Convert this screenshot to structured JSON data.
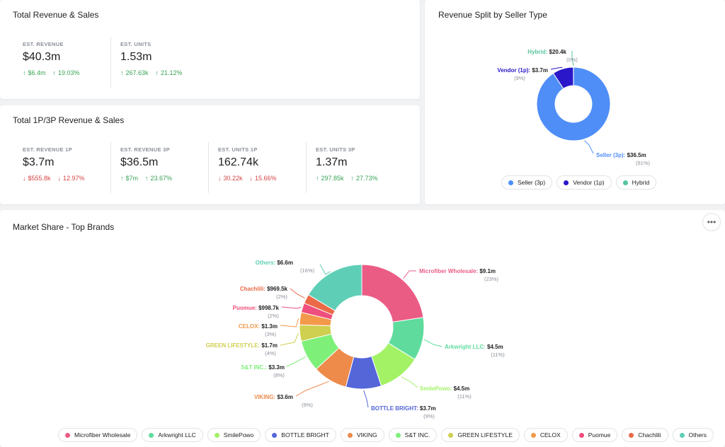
{
  "total_revenue_card": {
    "title": "Total Revenue & Sales",
    "metrics": [
      {
        "label": "EST. REVENUE",
        "value": "$40.3m",
        "changes": [
          {
            "dir": "up",
            "text": "$6.4m"
          },
          {
            "dir": "up",
            "text": "19.03%"
          }
        ]
      },
      {
        "label": "EST. UNITS",
        "value": "1.53m",
        "changes": [
          {
            "dir": "up",
            "text": "267.63k"
          },
          {
            "dir": "up",
            "text": "21.12%"
          }
        ]
      }
    ]
  },
  "total_1p3p_card": {
    "title": "Total 1P/3P Revenue & Sales",
    "metrics": [
      {
        "label": "EST. REVENUE 1P",
        "value": "$3.7m",
        "changes": [
          {
            "dir": "down",
            "text": "$555.8k"
          },
          {
            "dir": "down",
            "text": "12.97%"
          }
        ]
      },
      {
        "label": "EST. REVENUE 3P",
        "value": "$36.5m",
        "changes": [
          {
            "dir": "up",
            "text": "$7m"
          },
          {
            "dir": "up",
            "text": "23.67%"
          }
        ]
      },
      {
        "label": "EST. UNITS 1P",
        "value": "162.74k",
        "changes": [
          {
            "dir": "down",
            "text": "30.22k"
          },
          {
            "dir": "down",
            "text": "15.66%"
          }
        ]
      },
      {
        "label": "EST. UNITS 3P",
        "value": "1.37m",
        "changes": [
          {
            "dir": "up",
            "text": "297.85k"
          },
          {
            "dir": "up",
            "text": "27.73%"
          }
        ]
      }
    ]
  },
  "arrows": {
    "up": "↑",
    "down": "↓"
  },
  "colors": {
    "up": "#3aa356",
    "down": "#d64545"
  },
  "chart_data": [
    {
      "type": "pie",
      "title": "Revenue Split by Seller Type",
      "slices": [
        {
          "name": "Seller (3p)",
          "label": "Seller (3p):",
          "value": 36.5,
          "value_text": "$36.5m",
          "pct_text": "(91%)",
          "color": "#4f8ef7"
        },
        {
          "name": "Vendor (1p)",
          "label": "Vendor (1p):",
          "value": 3.7,
          "value_text": "$3.7m",
          "pct_text": "(9%)",
          "color": "#2a17c9"
        },
        {
          "name": "Hybrid",
          "label": "Hybrid:",
          "value": 0.0204,
          "value_text": "$20.4k",
          "pct_text": "(0%)",
          "color": "#55c49a"
        }
      ],
      "legend": [
        "Seller (3p)",
        "Vendor (1p)",
        "Hybrid"
      ]
    },
    {
      "type": "pie",
      "title": "Market Share - Top Brands",
      "slices": [
        {
          "name": "Microfiber Wholesale",
          "label": "Microfiber Wholesale:",
          "value": 9.1,
          "value_text": "$9.1m",
          "pct_text": "(23%)",
          "color": "#eb5c85"
        },
        {
          "name": "Arkwright LLC",
          "label": "Arkwright LLC:",
          "value": 4.5,
          "value_text": "$4.5m",
          "pct_text": "(11%)",
          "color": "#5fdc9d"
        },
        {
          "name": "SmilePowo",
          "label": "SmilePowo:",
          "value": 4.5,
          "value_text": "$4.5m",
          "pct_text": "(11%)",
          "color": "#a3f266"
        },
        {
          "name": "BOTTLE BRIGHT",
          "label": "BOTTLE BRIGHT:",
          "value": 3.7,
          "value_text": "$3.7m",
          "pct_text": "(9%)",
          "color": "#5566d9"
        },
        {
          "name": "VIKING",
          "label": "VIKING:",
          "value": 3.6,
          "value_text": "$3.6m",
          "pct_text": "(9%)",
          "color": "#ee8a4a"
        },
        {
          "name": "S&T INC.",
          "label": "S&T INC.:",
          "value": 3.3,
          "value_text": "$3.3m",
          "pct_text": "(8%)",
          "color": "#7ef07a"
        },
        {
          "name": "GREEN LIFESTYLE",
          "label": "GREEN LIFESTYLE:",
          "value": 1.7,
          "value_text": "$1.7m",
          "pct_text": "(4%)",
          "color": "#cfcf50"
        },
        {
          "name": "CELOX",
          "label": "CELOX:",
          "value": 1.3,
          "value_text": "$1.3m",
          "pct_text": "(3%)",
          "color": "#f2994a"
        },
        {
          "name": "Puomue",
          "label": "Puomue:",
          "value": 0.9987,
          "value_text": "$998.7k",
          "pct_text": "(2%)",
          "color": "#ee4f7c"
        },
        {
          "name": "Chachlili",
          "label": "Chachlili:",
          "value": 0.9695,
          "value_text": "$969.5k",
          "pct_text": "(2%)",
          "color": "#ea6a48"
        },
        {
          "name": "Others",
          "label": "Others:",
          "value": 6.6,
          "value_text": "$6.6m",
          "pct_text": "(16%)",
          "color": "#5ecfb6"
        }
      ],
      "legend": [
        "Microfiber Wholesale",
        "Arkwright LLC",
        "SmilePowo",
        "BOTTLE BRIGHT",
        "VIKING",
        "S&T INC.",
        "GREEN LIFESTYLE",
        "CELOX",
        "Puomue",
        "Chachlili",
        "Others"
      ]
    }
  ],
  "more_button": {
    "label": "•••",
    "icon": "more-horizontal-icon"
  }
}
